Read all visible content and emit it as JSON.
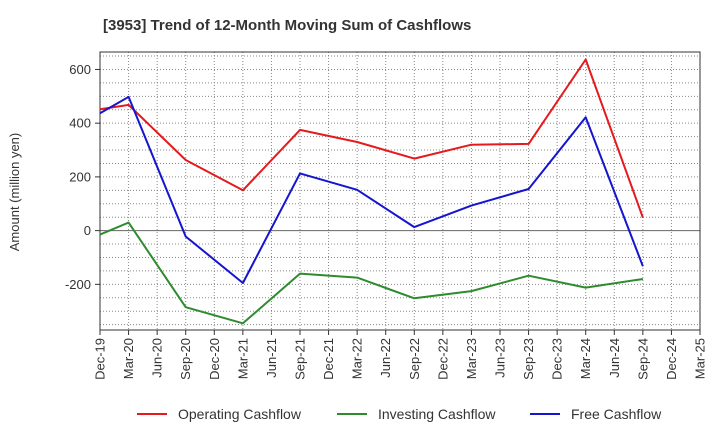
{
  "chart_data": {
    "type": "line",
    "title": "[3953]  Trend of 12-Month Moving Sum of Cashflows",
    "ylabel": "Amount (million yen)",
    "xlabel": "",
    "ylim": [
      -370,
      665
    ],
    "y_ticks": [
      -200,
      0,
      200,
      400,
      600
    ],
    "categories": [
      "Dec-19",
      "Mar-20",
      "Jun-20",
      "Sep-20",
      "Dec-20",
      "Mar-21",
      "Jun-21",
      "Sep-21",
      "Dec-21",
      "Mar-22",
      "Jun-22",
      "Sep-22",
      "Dec-22",
      "Mar-23",
      "Jun-23",
      "Sep-23",
      "Dec-23",
      "Mar-24",
      "Jun-24",
      "Sep-24",
      "Dec-24",
      "Mar-25"
    ],
    "grid": true,
    "legend_position": "bottom",
    "series": [
      {
        "name": "Operating Cashflow",
        "color": "#e41a1c",
        "values": [
          452,
          468,
          null,
          263,
          null,
          150,
          null,
          375,
          null,
          330,
          null,
          268,
          null,
          320,
          null,
          323,
          null,
          637,
          null,
          48,
          null,
          null
        ]
      },
      {
        "name": "Investing Cashflow",
        "color": "#2e8b2e",
        "values": [
          -15,
          30,
          null,
          -285,
          null,
          -345,
          null,
          -160,
          null,
          -175,
          null,
          -252,
          null,
          -225,
          null,
          -168,
          null,
          -212,
          null,
          -180,
          null,
          null
        ]
      },
      {
        "name": "Free Cashflow",
        "color": "#1515d0",
        "values": [
          437,
          498,
          null,
          -22,
          null,
          -195,
          null,
          213,
          null,
          152,
          null,
          13,
          null,
          93,
          null,
          155,
          null,
          422,
          null,
          -133,
          null,
          null
        ]
      }
    ]
  }
}
